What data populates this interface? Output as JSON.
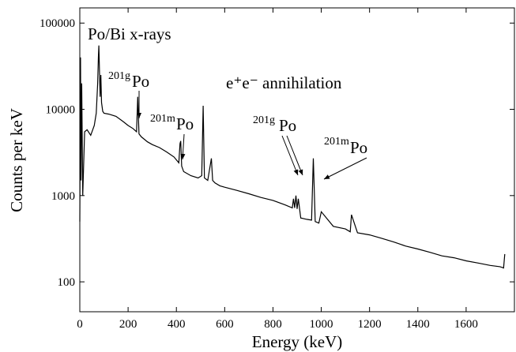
{
  "chart_data": {
    "type": "line",
    "x_label": "Energy (keV)",
    "y_label": "Counts per keV",
    "x": [
      0,
      3,
      5,
      8,
      12,
      20,
      30,
      45,
      60,
      68,
      74,
      77,
      79,
      81,
      84,
      87,
      90,
      95,
      100,
      120,
      150,
      180,
      200,
      220,
      235,
      240,
      245,
      255,
      280,
      300,
      330,
      360,
      390,
      410,
      415,
      418,
      422,
      430,
      460,
      490,
      505,
      511,
      516,
      530,
      545,
      550,
      560,
      580,
      600,
      650,
      700,
      750,
      800,
      850,
      880,
      885,
      890,
      895,
      900,
      905,
      915,
      940,
      960,
      967,
      975,
      990,
      1000,
      1050,
      1100,
      1120,
      1125,
      1150,
      1200,
      1250,
      1300,
      1350,
      1400,
      1450,
      1500,
      1550,
      1600,
      1650,
      1700,
      1740,
      1755,
      1760
    ],
    "values": [
      500,
      40000,
      1500,
      20000,
      1000,
      5500,
      5800,
      5000,
      6500,
      9000,
      20000,
      40000,
      55000,
      30000,
      14000,
      25000,
      12000,
      9500,
      9000,
      8800,
      8300,
      7200,
      6500,
      6000,
      5500,
      14000,
      5200,
      4800,
      4200,
      3900,
      3600,
      3200,
      2800,
      2400,
      4000,
      4300,
      2200,
      1900,
      1700,
      1600,
      1700,
      11000,
      1600,
      1500,
      2700,
      1500,
      1400,
      1300,
      1250,
      1150,
      1050,
      950,
      880,
      780,
      720,
      920,
      720,
      1000,
      700,
      920,
      550,
      530,
      520,
      2700,
      500,
      480,
      650,
      440,
      410,
      380,
      600,
      370,
      350,
      320,
      290,
      260,
      240,
      220,
      200,
      190,
      175,
      165,
      155,
      150,
      145,
      210
    ],
    "color": "#000000",
    "xlim": [
      0,
      1800
    ],
    "xticks": [
      0,
      200,
      400,
      600,
      800,
      1000,
      1200,
      1400,
      1600
    ],
    "ylim": [
      45,
      150000
    ],
    "yticks": [
      100,
      1000,
      10000,
      100000
    ],
    "y_scale": "log",
    "annotations": [
      {
        "text": "Po/Bi x-rays"
      },
      {
        "sup": "201g",
        "text": "Po"
      },
      {
        "sup": "201m",
        "text": "Po"
      },
      {
        "text": "e⁺e⁻ annihilation"
      },
      {
        "sup": "201g",
        "text": "Po"
      },
      {
        "sup": "201m",
        "text": "Po"
      }
    ]
  }
}
